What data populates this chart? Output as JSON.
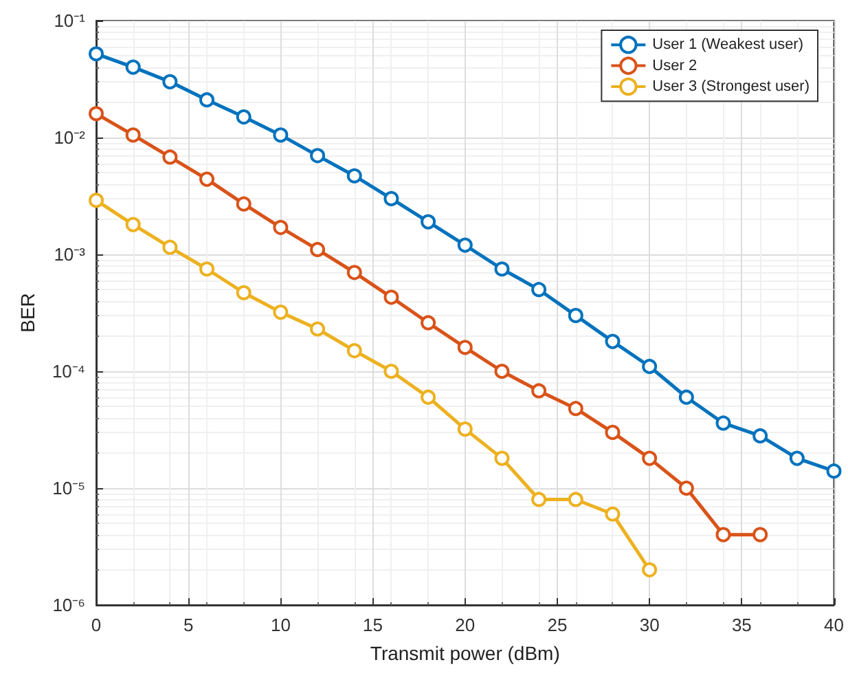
{
  "chart_data": {
    "type": "line",
    "xlabel": "Transmit power (dBm)",
    "ylabel": "BER",
    "log": "y",
    "grid": true,
    "legend": "top right",
    "marker": "circle",
    "line_style": "solid",
    "xlim": [
      0,
      40
    ],
    "xticks": [
      0,
      5,
      10,
      15,
      20,
      25,
      30,
      35,
      40
    ],
    "ylim": [
      1e-06,
      0.1
    ],
    "yticks": [
      {
        "value": 1e-06,
        "label": "10⁻⁶"
      },
      {
        "value": 1e-05,
        "label": "10⁻⁵"
      },
      {
        "value": 0.0001,
        "label": "10⁻⁴"
      },
      {
        "value": 0.001,
        "label": "10⁻³"
      },
      {
        "value": 0.01,
        "label": "10⁻²"
      },
      {
        "value": 0.1,
        "label": "10⁻¹"
      }
    ],
    "series": [
      {
        "name": "User 1 (Weakest user)",
        "color": "#0072bd",
        "x": [
          0,
          2,
          4,
          6,
          8,
          10,
          12,
          14,
          16,
          18,
          20,
          22,
          24,
          26,
          28,
          30,
          32,
          34,
          36,
          38,
          40
        ],
        "values": [
          0.052,
          0.04,
          0.03,
          0.021,
          0.015,
          0.0105,
          0.007,
          0.0047,
          0.003,
          0.0019,
          0.0012,
          0.00075,
          0.0005,
          0.0003,
          0.00018,
          0.00011,
          6e-05,
          3.6e-05,
          2.8e-05,
          1.8e-05,
          1.4e-05
        ]
      },
      {
        "name": "User 2",
        "color": "#d95319",
        "x": [
          0,
          2,
          4,
          6,
          8,
          10,
          12,
          14,
          16,
          18,
          20,
          22,
          24,
          26,
          28,
          30,
          32,
          34,
          36
        ],
        "values": [
          0.016,
          0.0105,
          0.0068,
          0.0044,
          0.0027,
          0.0017,
          0.0011,
          0.0007,
          0.00043,
          0.00026,
          0.00016,
          0.0001,
          6.8e-05,
          4.8e-05,
          3e-05,
          1.8e-05,
          1e-05,
          4e-06,
          4e-06
        ]
      },
      {
        "name": "User 3 (Strongest user)",
        "color": "#edb120",
        "x": [
          0,
          2,
          4,
          6,
          8,
          10,
          12,
          14,
          16,
          18,
          20,
          22,
          24,
          26,
          28,
          30
        ],
        "values": [
          0.0029,
          0.0018,
          0.00115,
          0.00075,
          0.00047,
          0.00032,
          0.00023,
          0.00015,
          0.0001,
          6e-05,
          3.2e-05,
          1.8e-05,
          8e-06,
          8e-06,
          6e-06,
          2e-06
        ]
      }
    ]
  }
}
